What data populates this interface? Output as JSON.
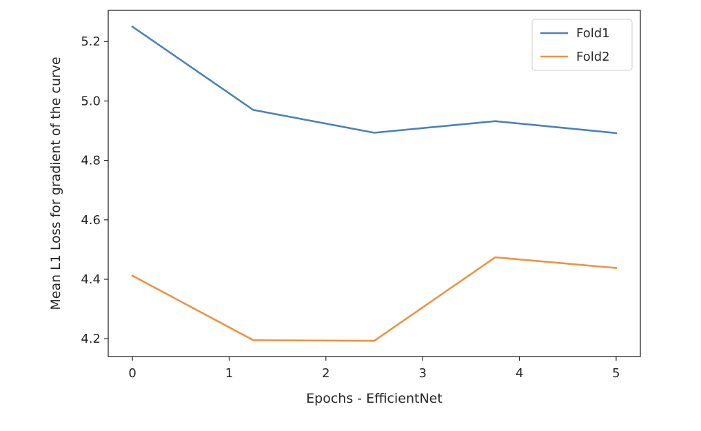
{
  "chart_data": {
    "type": "line",
    "title": "",
    "xlabel": "Epochs - EfficientNet",
    "ylabel": "Mean L1 Loss for gradient of the curve",
    "x": [
      0,
      1.25,
      2.5,
      3.75,
      5
    ],
    "series": [
      {
        "name": "Fold1",
        "color": "#4c80b8",
        "values": [
          5.25,
          4.97,
          4.893,
          4.932,
          4.892
        ]
      },
      {
        "name": "Fold2",
        "color": "#f0913f",
        "values": [
          4.412,
          4.195,
          4.193,
          4.474,
          4.438
        ]
      }
    ],
    "xticks": [
      0,
      1,
      2,
      3,
      4,
      5
    ],
    "xtick_labels": [
      "0",
      "1",
      "2",
      "3",
      "4",
      "5"
    ],
    "yticks": [
      4.2,
      4.4,
      4.6,
      4.8,
      5.0,
      5.2
    ],
    "ytick_labels": [
      "4.2",
      "4.4",
      "4.6",
      "4.8",
      "5.0",
      "5.2"
    ],
    "xlim": [
      -0.25,
      5.25
    ],
    "ylim": [
      4.14,
      5.305
    ],
    "grid": false,
    "legend_position": "top-right"
  }
}
